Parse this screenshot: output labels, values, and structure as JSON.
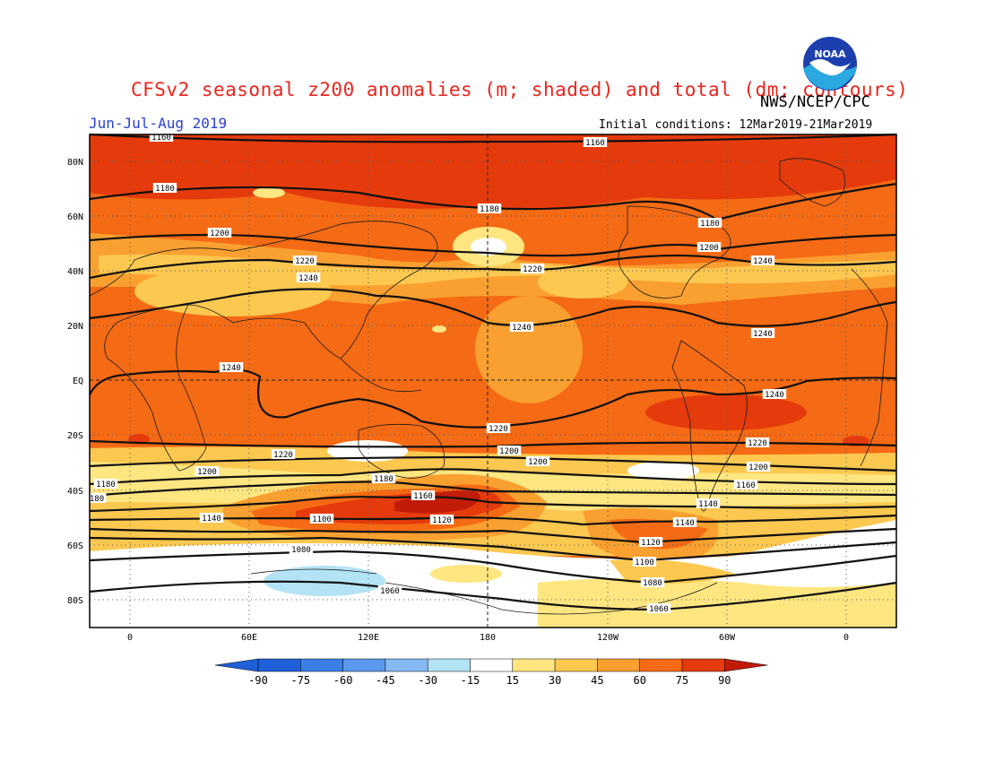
{
  "header": {
    "title": "CFSv2 seasonal z200 anomalies (m; shaded) and total (dm; contours)",
    "agency": "NWS/NCEP/CPC",
    "season": "Jun-Jul-Aug 2019",
    "initial_conditions": "Initial conditions: 12Mar2019-21Mar2019",
    "logo_text": "NOAA"
  },
  "map": {
    "lat_labels": [
      "80N",
      "60N",
      "40N",
      "20N",
      "EQ",
      "20S",
      "40S",
      "60S",
      "80S"
    ],
    "lon_labels": [
      "0",
      "60E",
      "120E",
      "180",
      "120W",
      "60W",
      "0"
    ],
    "contour_labels": [
      "1160",
      "1160",
      "1180",
      "1180",
      "1180",
      "1200",
      "1200",
      "1220",
      "1220",
      "1240",
      "1240",
      "1240",
      "1240",
      "1240",
      "1240",
      "1220",
      "1220",
      "1200",
      "1200",
      "1220",
      "1200",
      "1180",
      "1180",
      "1180",
      "1160",
      "1160",
      "1140",
      "1140",
      "1120",
      "1100",
      "1140",
      "1120",
      "1080",
      "1100",
      "1060",
      "1080",
      "1060",
      "1180",
      "180",
      "1200"
    ],
    "colors": {
      "neg90": "#1f5fd8",
      "neg75": "#3a7fe6",
      "neg60": "#5b99ee",
      "neg45": "#84b9f4",
      "neg30": "#b3e3f4",
      "neutral": "#ffffff",
      "pos15": "#ffe680",
      "pos30": "#fdc850",
      "pos45": "#f9a030",
      "pos60": "#f56a14",
      "pos75": "#e53b0c",
      "pos90": "#c01c08"
    }
  },
  "colorbar": {
    "ticks": [
      "-90",
      "-75",
      "-60",
      "-45",
      "-30",
      "-15",
      "15",
      "30",
      "45",
      "60",
      "75",
      "90"
    ]
  }
}
